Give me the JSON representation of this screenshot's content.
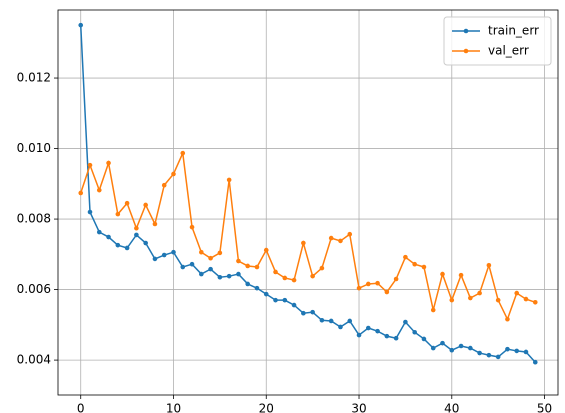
{
  "chart_data": {
    "type": "line",
    "x": [
      0,
      1,
      2,
      3,
      4,
      5,
      6,
      7,
      8,
      9,
      10,
      11,
      12,
      13,
      14,
      15,
      16,
      17,
      18,
      19,
      20,
      21,
      22,
      23,
      24,
      25,
      26,
      27,
      28,
      29,
      30,
      31,
      32,
      33,
      34,
      35,
      36,
      37,
      38,
      39,
      40,
      41,
      42,
      43,
      44,
      45,
      46,
      47,
      48,
      49
    ],
    "series": [
      {
        "name": "train_err",
        "color": "#1f77b4",
        "values": [
          0.0135,
          0.0082,
          0.00763,
          0.00749,
          0.00726,
          0.00718,
          0.00755,
          0.00732,
          0.00687,
          0.00698,
          0.00706,
          0.00664,
          0.00672,
          0.00644,
          0.00658,
          0.00635,
          0.00638,
          0.00644,
          0.00616,
          0.00604,
          0.00587,
          0.0057,
          0.0057,
          0.00556,
          0.00533,
          0.00536,
          0.00513,
          0.00511,
          0.00494,
          0.00511,
          0.00471,
          0.00491,
          0.00482,
          0.00468,
          0.00462,
          0.00508,
          0.00479,
          0.0046,
          0.00434,
          0.00448,
          0.00428,
          0.0044,
          0.00434,
          0.0042,
          0.00414,
          0.00409,
          0.00431,
          0.00426,
          0.00423,
          0.00394
        ]
      },
      {
        "name": "val_err",
        "color": "#ff7f0e",
        "values": [
          0.00874,
          0.00953,
          0.00882,
          0.00959,
          0.00814,
          0.00845,
          0.00774,
          0.0084,
          0.00786,
          0.00896,
          0.00928,
          0.00987,
          0.00777,
          0.00706,
          0.00689,
          0.00704,
          0.00911,
          0.00681,
          0.00667,
          0.00664,
          0.00712,
          0.0065,
          0.00633,
          0.00627,
          0.00732,
          0.00638,
          0.00661,
          0.00746,
          0.00738,
          0.00757,
          0.00604,
          0.00616,
          0.00618,
          0.00593,
          0.0063,
          0.00692,
          0.00672,
          0.00664,
          0.00542,
          0.00644,
          0.0057,
          0.00641,
          0.00576,
          0.0059,
          0.00669,
          0.0057,
          0.00516,
          0.0059,
          0.00573,
          0.00564
        ]
      }
    ],
    "xlim": [
      -2.45,
      51.45
    ],
    "ylim": [
      0.00301,
      0.01393
    ],
    "xticks": [
      0,
      10,
      20,
      30,
      40,
      50
    ],
    "yticks": [
      0.004,
      0.006,
      0.008,
      {
        "value": 0.01,
        "label": "0.010"
      },
      0.012
    ],
    "grid": true,
    "legend": "upper-right"
  }
}
